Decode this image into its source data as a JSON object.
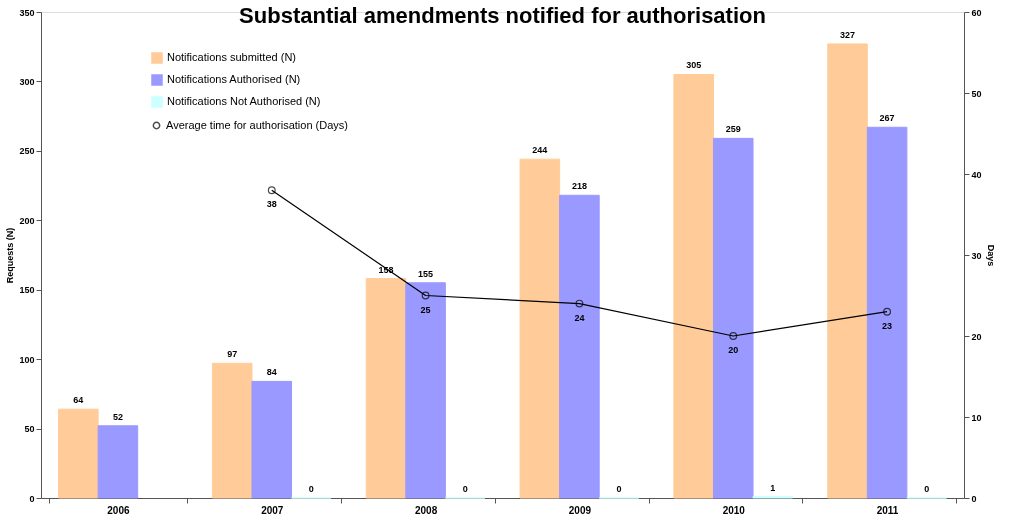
{
  "chart_data": {
    "type": "bar",
    "title": "Substantial amendments notified for authorisation",
    "categories": [
      "2006",
      "2007",
      "2008",
      "2009",
      "2010",
      "2011"
    ],
    "series": [
      {
        "name": "Notifications submitted (N)",
        "color": "#ffcc99",
        "values": [
          64,
          97,
          158,
          244,
          305,
          327
        ]
      },
      {
        "name": "Notifications Authorised (N)",
        "color": "#9999ff",
        "values": [
          52,
          84,
          155,
          218,
          259,
          267
        ]
      },
      {
        "name": "Notifications Not Authorised (N)",
        "color": "#ccffff",
        "values": [
          null,
          0,
          0,
          0,
          1,
          0
        ]
      },
      {
        "name": "Average time for authorisation (Days)",
        "color": "#000000",
        "type": "line",
        "axis": "y2",
        "marker": "circle",
        "values": [
          null,
          38,
          25,
          24,
          20,
          23
        ]
      }
    ],
    "ylabel": "Requests (N)",
    "y2label": "Days",
    "ylim": [
      0,
      350
    ],
    "yticks": [
      0,
      50,
      100,
      150,
      200,
      250,
      300,
      350
    ],
    "y2lim": [
      0,
      60
    ],
    "y2ticks": [
      0,
      10,
      20,
      30,
      40,
      50,
      60
    ],
    "data_labels": true,
    "legend": "top left",
    "grid": false
  }
}
